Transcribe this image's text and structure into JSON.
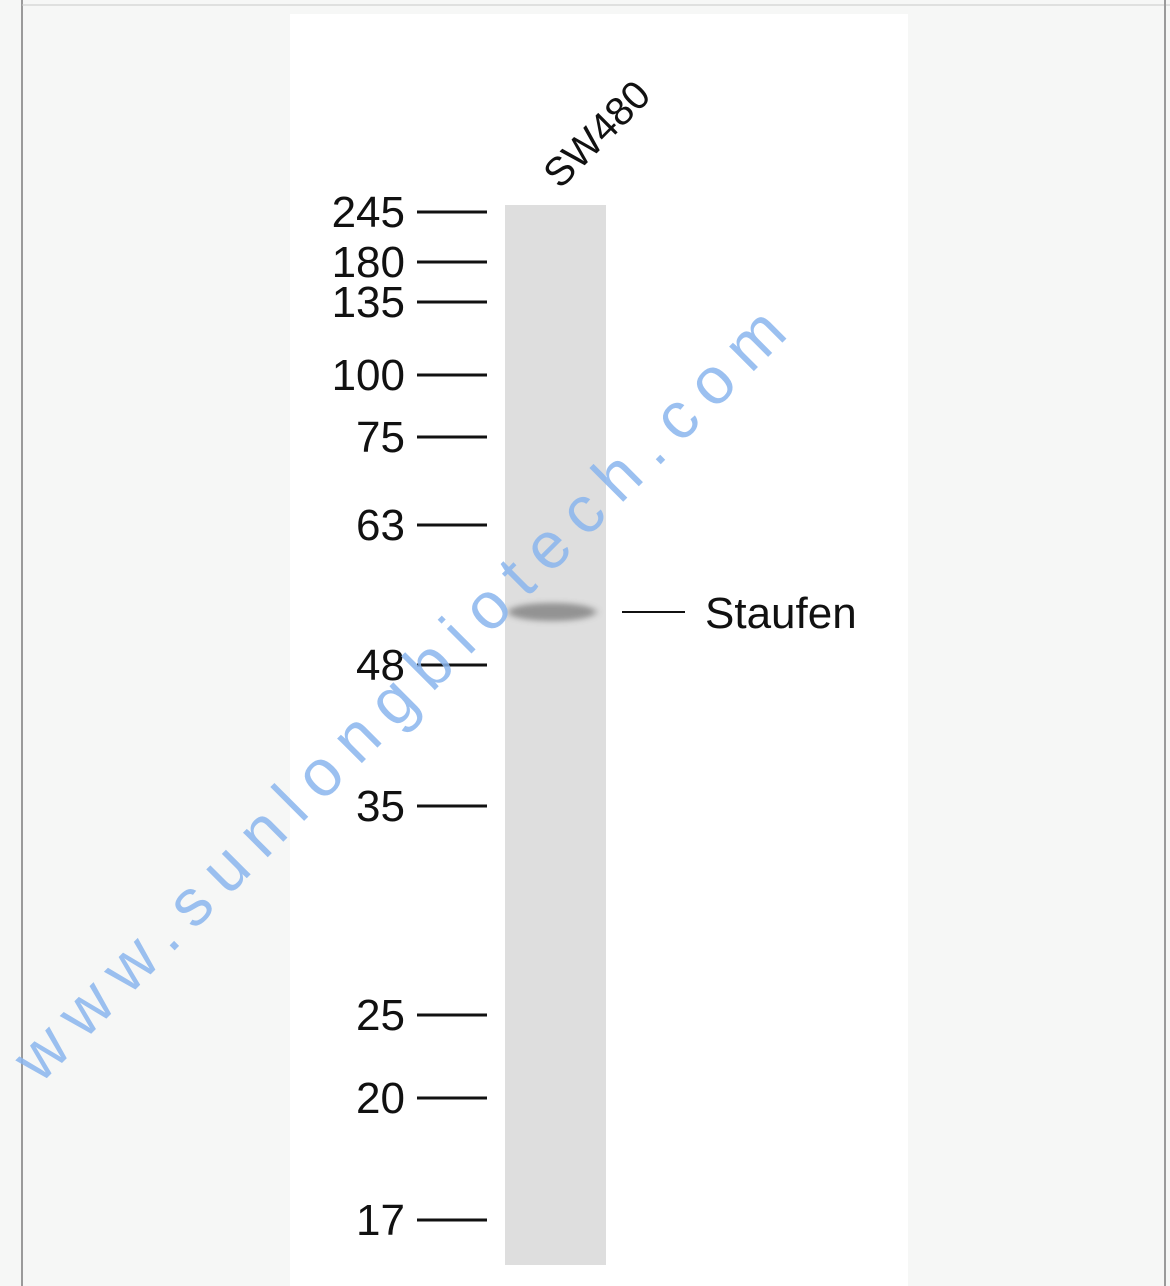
{
  "lane_label": "SW480",
  "markers": [
    "245",
    "180",
    "135",
    "100",
    "75",
    "63",
    "48",
    "35",
    "25",
    "20",
    "17"
  ],
  "band_label": "Staufen",
  "watermark": "www.sunlongbiotech.com"
}
